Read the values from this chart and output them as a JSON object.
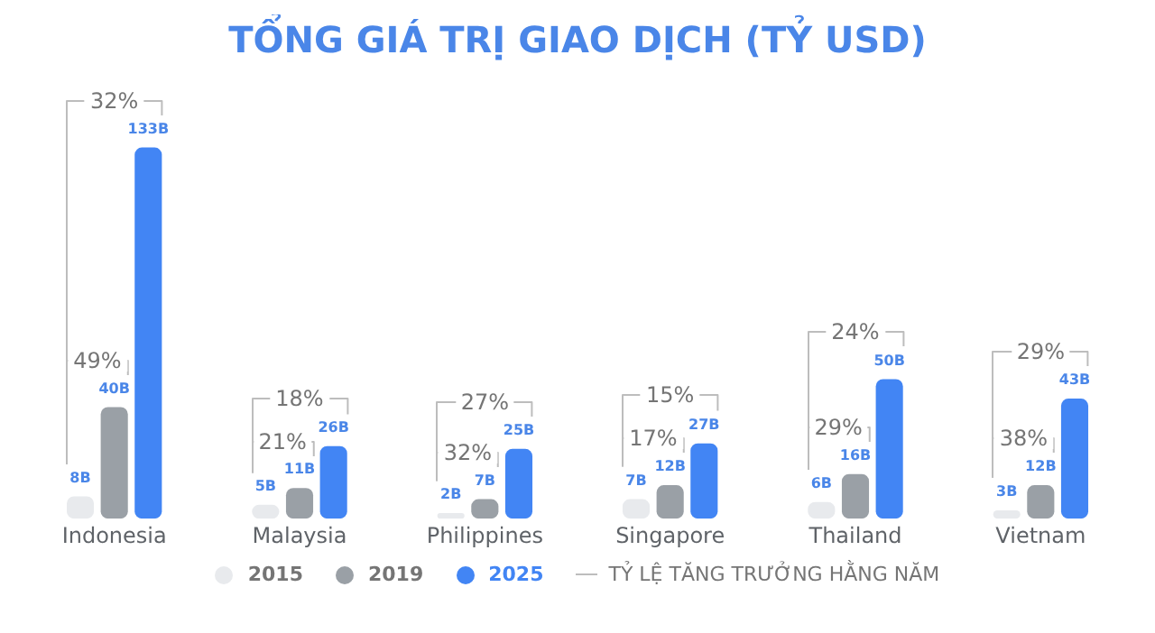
{
  "chart_data": {
    "type": "bar",
    "title": "TỔNG GIÁ TRỊ GIAO DỊCH (TỶ USD)",
    "categories": [
      "Indonesia",
      "Malaysia",
      "Philippines",
      "Singapore",
      "Thailand",
      "Vietnam"
    ],
    "series": [
      {
        "name": "2015",
        "color": "#e8eaed",
        "values": [
          8,
          5,
          2,
          7,
          6,
          3
        ],
        "value_labels": [
          "8B",
          "5B",
          "2B",
          "7B",
          "6B",
          "3B"
        ]
      },
      {
        "name": "2019",
        "color": "#9aa0a6",
        "values": [
          40,
          11,
          7,
          12,
          16,
          12
        ],
        "value_labels": [
          "40B",
          "11B",
          "7B",
          "12B",
          "16B",
          "12B"
        ]
      },
      {
        "name": "2025",
        "color": "#4285f4",
        "values": [
          133,
          26,
          25,
          27,
          50,
          43
        ],
        "value_labels": [
          "133B",
          "26B",
          "25B",
          "27B",
          "50B",
          "43B"
        ]
      }
    ],
    "annotations": [
      "49%",
      "32%",
      "21%",
      "18%",
      "32%",
      "27%",
      "17%",
      "15%",
      "29%",
      "24%",
      "38%",
      "29%",
      "TỶ LỆ TĂNG TRƯỞNG HẰNG NĂM"
    ],
    "legend": "bottom",
    "grid": false,
    "tick_labels": "x"
  }
}
